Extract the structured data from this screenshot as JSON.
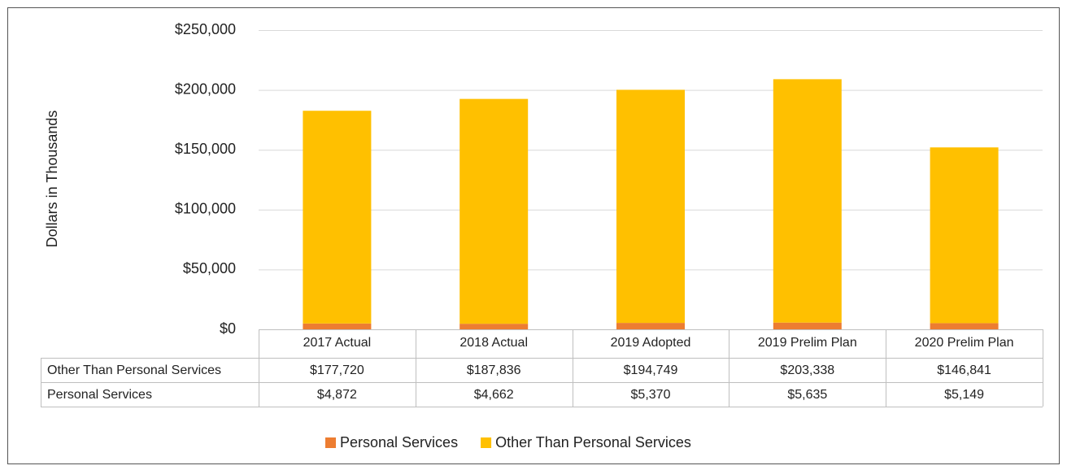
{
  "chart_data": {
    "type": "bar",
    "stacked": true,
    "y_label": "Dollars in Thousands",
    "categories": [
      "2017 Actual",
      "2018 Actual",
      "2019 Adopted",
      "2019 Prelim Plan",
      "2020 Prelim Plan"
    ],
    "series": [
      {
        "name": "Personal Services",
        "color": "#ED7D31",
        "values": [
          4872,
          4662,
          5370,
          5635,
          5149
        ],
        "value_labels": [
          "$4,872",
          "$4,662",
          "$5,370",
          "$5,635",
          "$5,149"
        ]
      },
      {
        "name": "Other Than Personal Services",
        "color": "#FFC000",
        "values": [
          177720,
          187836,
          194749,
          203338,
          146841
        ],
        "value_labels": [
          "$177,720",
          "$187,836",
          "$194,749",
          "$203,338",
          "$146,841"
        ]
      }
    ],
    "ylim": [
      0,
      250000
    ],
    "yticks": [
      {
        "value": 0,
        "label": "$0"
      },
      {
        "value": 50000,
        "label": "$50,000"
      },
      {
        "value": 100000,
        "label": "$100,000"
      },
      {
        "value": 150000,
        "label": "$150,000"
      },
      {
        "value": 200000,
        "label": "$200,000"
      },
      {
        "value": 250000,
        "label": "$250,000"
      }
    ],
    "grid": true,
    "legend": "bottom"
  }
}
